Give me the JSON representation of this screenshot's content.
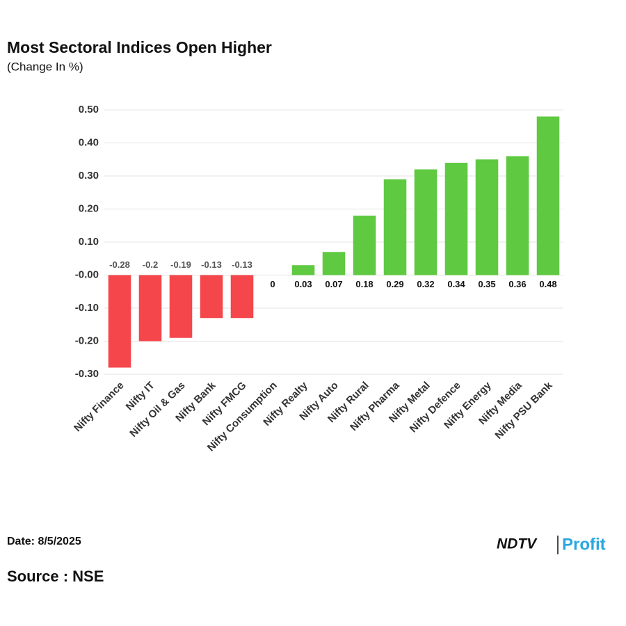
{
  "chart_data": {
    "type": "bar",
    "title": "Most Sectoral Indices Open Higher",
    "subtitle": "(Change In %)",
    "categories": [
      "Nifty Finance",
      "Nifty IT",
      "Nifty Oil & Gas",
      "Nifty Bank",
      "Nifty FMCG",
      "Nifty Consumption",
      "Nifty Realty",
      "Nifty Auto",
      "Nifty Rural",
      "Nifty Pharma",
      "Nifty Metal",
      "Nifty Defence",
      "Nifty Energy",
      "Nifty Media",
      "Nifty PSU Bank"
    ],
    "values": [
      -0.28,
      -0.2,
      -0.19,
      -0.13,
      -0.13,
      0,
      0.03,
      0.07,
      0.18,
      0.29,
      0.32,
      0.34,
      0.35,
      0.36,
      0.48
    ],
    "color_positive": "#5ec941",
    "color_negative": "#f4464b",
    "ylim": [
      -0.3,
      0.5
    ],
    "yticks": [
      {
        "value": -0.3,
        "label": "-0.30"
      },
      {
        "value": -0.2,
        "label": "-0.20"
      },
      {
        "value": -0.1,
        "label": "-0.10"
      },
      {
        "value": 0,
        "label": "-0.00"
      },
      {
        "value": 0.1,
        "label": "0.10"
      },
      {
        "value": 0.2,
        "label": "0.20"
      },
      {
        "value": 0.3,
        "label": "0.30"
      },
      {
        "value": 0.4,
        "label": "0.40"
      },
      {
        "value": 0.5,
        "label": "0.50"
      }
    ],
    "grid": true
  },
  "footer": {
    "date": "Date: 8/5/2025",
    "source": "Source : NSE",
    "logo": "NDTV",
    "logo_sub": "Profit"
  }
}
